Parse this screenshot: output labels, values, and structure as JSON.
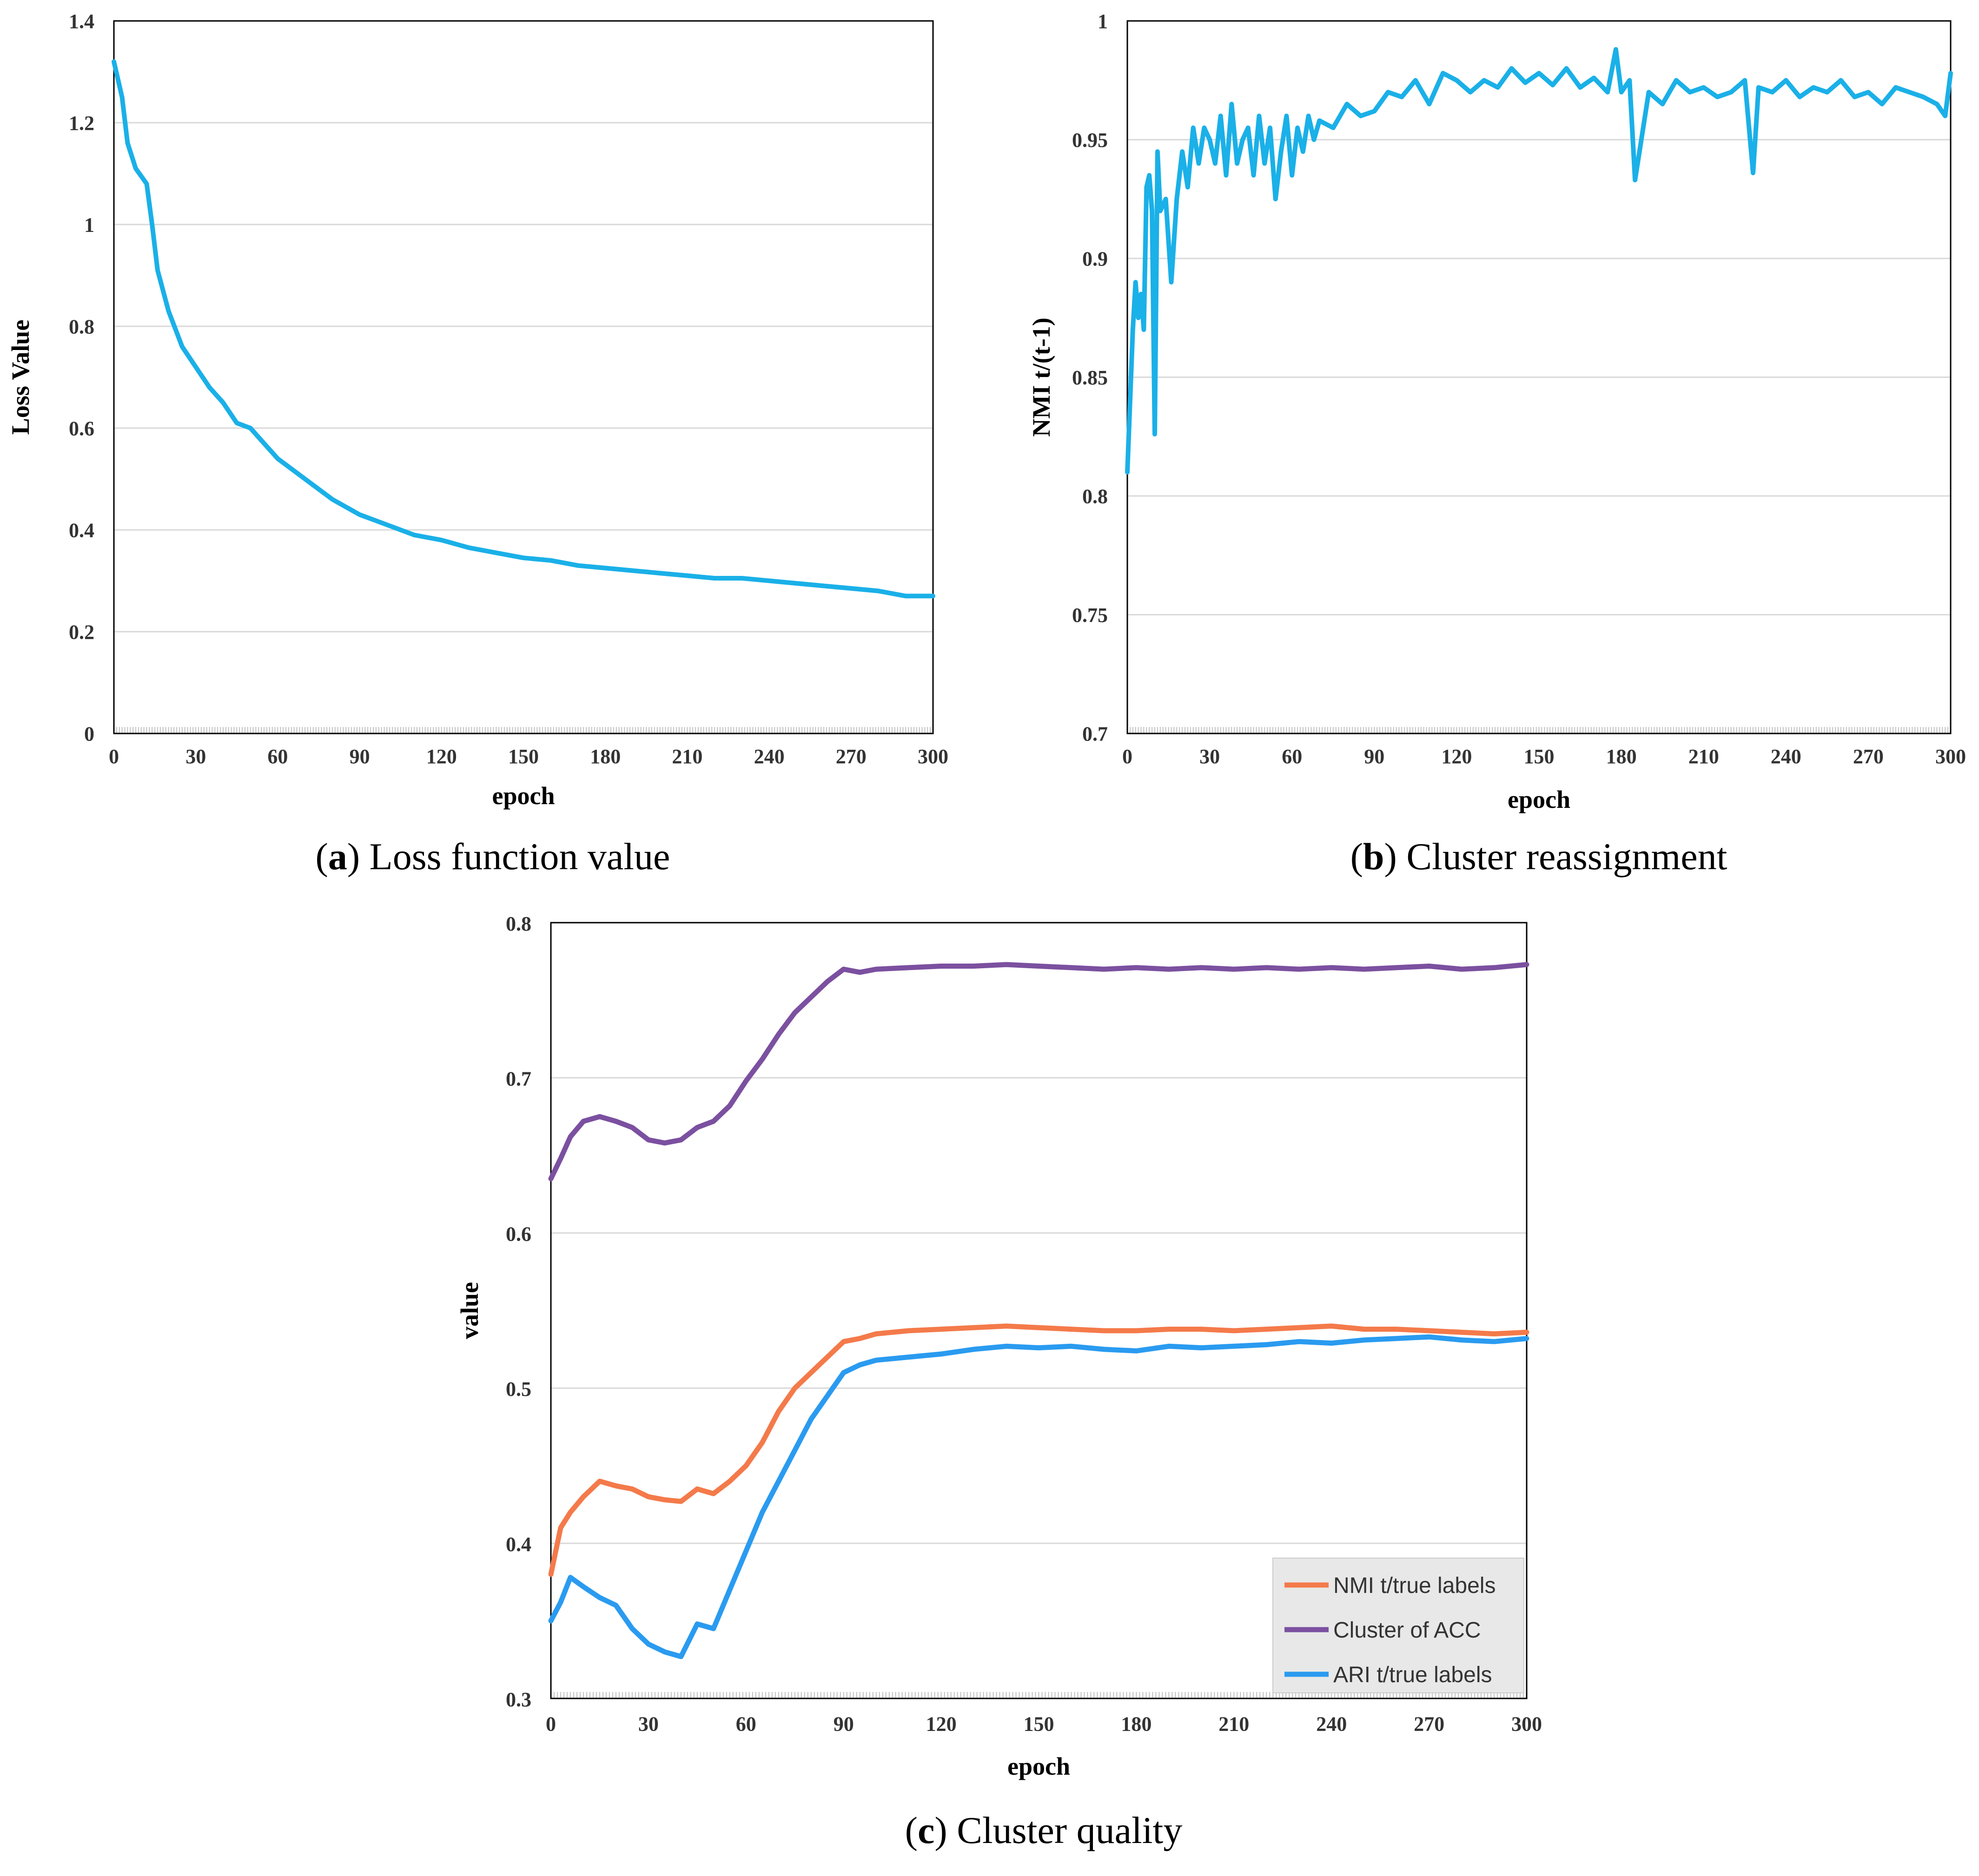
{
  "colors": {
    "loss": "#1ab0e8",
    "reassign": "#1ab0e8",
    "nmi": "#f47a4a",
    "acc": "#7b50a0",
    "ari": "#2a9bf0",
    "grid": "#d9d9d9",
    "frame": "#000000",
    "legend_bg": "#e8e8e8"
  },
  "chart_data": [
    {
      "id": "a",
      "type": "line",
      "title": "Loss function value",
      "caption_letter": "a",
      "caption_text": "Loss function value",
      "xlabel": "epoch",
      "ylabel": "Loss Value",
      "xlim": [
        0,
        300
      ],
      "ylim": [
        0,
        1.4
      ],
      "xticks": [
        0,
        30,
        60,
        90,
        120,
        150,
        180,
        210,
        240,
        270,
        300
      ],
      "xtick_labels": [
        "0",
        "30",
        "60",
        "90",
        "120",
        "150",
        "180",
        "210",
        "240",
        "270",
        "300"
      ],
      "yticks": [
        0,
        0.2,
        0.4,
        0.6,
        0.8,
        1.0,
        1.2,
        1.4
      ],
      "ytick_labels": [
        "0",
        "0.2",
        "0.4",
        "0.6",
        "0.8",
        "1",
        "1.2",
        "1.4"
      ],
      "grid": true,
      "series": [
        {
          "name": "Loss",
          "x": [
            0,
            3,
            5,
            8,
            12,
            14,
            16,
            20,
            25,
            30,
            35,
            40,
            45,
            50,
            55,
            60,
            70,
            80,
            90,
            100,
            110,
            120,
            130,
            140,
            150,
            160,
            170,
            180,
            190,
            200,
            210,
            220,
            230,
            240,
            250,
            260,
            270,
            280,
            290,
            300
          ],
          "y": [
            1.32,
            1.25,
            1.16,
            1.11,
            1.08,
            1.0,
            0.91,
            0.83,
            0.76,
            0.72,
            0.68,
            0.65,
            0.61,
            0.6,
            0.57,
            0.54,
            0.5,
            0.46,
            0.43,
            0.41,
            0.39,
            0.38,
            0.365,
            0.355,
            0.345,
            0.34,
            0.33,
            0.325,
            0.32,
            0.315,
            0.31,
            0.305,
            0.305,
            0.3,
            0.295,
            0.29,
            0.285,
            0.28,
            0.27,
            0.27
          ]
        }
      ]
    },
    {
      "id": "b",
      "type": "line",
      "title": "Cluster reassignment",
      "caption_letter": "b",
      "caption_text": "Cluster reassignment",
      "xlabel": "epoch",
      "ylabel": "NMI t/(t-1)",
      "xlim": [
        0,
        300
      ],
      "ylim": [
        0.7,
        1.0
      ],
      "xticks": [
        0,
        30,
        60,
        90,
        120,
        150,
        180,
        210,
        240,
        270,
        300
      ],
      "xtick_labels": [
        "0",
        "30",
        "60",
        "90",
        "120",
        "150",
        "180",
        "210",
        "240",
        "270",
        "300"
      ],
      "yticks": [
        0.7,
        0.75,
        0.8,
        0.85,
        0.9,
        0.95,
        1.0
      ],
      "ytick_labels": [
        "0.7",
        "0.75",
        "0.8",
        "0.85",
        "0.9",
        "0.95",
        "1"
      ],
      "grid": true,
      "series": [
        {
          "name": "NMI t/(t-1)",
          "x": [
            0,
            2,
            3,
            4,
            5,
            6,
            7,
            8,
            9,
            10,
            11,
            12,
            14,
            16,
            18,
            20,
            22,
            24,
            26,
            28,
            30,
            32,
            34,
            36,
            38,
            40,
            42,
            44,
            46,
            48,
            50,
            52,
            54,
            56,
            58,
            60,
            62,
            64,
            66,
            68,
            70,
            75,
            80,
            85,
            90,
            95,
            100,
            105,
            110,
            115,
            120,
            125,
            130,
            135,
            140,
            145,
            150,
            155,
            160,
            165,
            170,
            175,
            178,
            180,
            183,
            185,
            190,
            195,
            200,
            205,
            210,
            215,
            220,
            225,
            228,
            230,
            235,
            240,
            245,
            250,
            255,
            260,
            265,
            270,
            275,
            280,
            285,
            290,
            295,
            298,
            300
          ],
          "y": [
            0.81,
            0.87,
            0.89,
            0.875,
            0.885,
            0.87,
            0.93,
            0.935,
            0.92,
            0.826,
            0.945,
            0.92,
            0.925,
            0.89,
            0.925,
            0.945,
            0.93,
            0.955,
            0.94,
            0.955,
            0.95,
            0.94,
            0.96,
            0.935,
            0.965,
            0.94,
            0.95,
            0.955,
            0.935,
            0.96,
            0.94,
            0.955,
            0.925,
            0.945,
            0.96,
            0.935,
            0.955,
            0.945,
            0.96,
            0.95,
            0.958,
            0.955,
            0.965,
            0.96,
            0.962,
            0.97,
            0.968,
            0.975,
            0.965,
            0.978,
            0.975,
            0.97,
            0.975,
            0.972,
            0.98,
            0.974,
            0.978,
            0.973,
            0.98,
            0.972,
            0.976,
            0.97,
            0.988,
            0.97,
            0.975,
            0.933,
            0.97,
            0.965,
            0.975,
            0.97,
            0.972,
            0.968,
            0.97,
            0.975,
            0.936,
            0.972,
            0.97,
            0.975,
            0.968,
            0.972,
            0.97,
            0.975,
            0.968,
            0.97,
            0.965,
            0.972,
            0.97,
            0.968,
            0.965,
            0.96,
            0.978
          ]
        }
      ]
    },
    {
      "id": "c",
      "type": "line",
      "title": "Cluster quality",
      "caption_letter": "c",
      "caption_text": "Cluster quality",
      "xlabel": "epoch",
      "ylabel": "value",
      "xlim": [
        0,
        300
      ],
      "ylim": [
        0.3,
        0.8
      ],
      "xticks": [
        0,
        30,
        60,
        90,
        120,
        150,
        180,
        210,
        240,
        270,
        300
      ],
      "xtick_labels": [
        "0",
        "30",
        "60",
        "90",
        "120",
        "150",
        "180",
        "210",
        "240",
        "270",
        "300"
      ],
      "yticks": [
        0.3,
        0.4,
        0.5,
        0.6,
        0.7,
        0.8
      ],
      "ytick_labels": [
        "0.3",
        "0.4",
        "0.5",
        "0.6",
        "0.7",
        "0.8"
      ],
      "grid": true,
      "legend_position": "bottom-right",
      "series": [
        {
          "name": "NMI t/true labels",
          "color_key": "nmi",
          "x": [
            0,
            3,
            6,
            10,
            15,
            20,
            25,
            30,
            35,
            40,
            45,
            50,
            55,
            60,
            65,
            70,
            75,
            80,
            85,
            90,
            95,
            100,
            110,
            120,
            130,
            140,
            150,
            160,
            170,
            180,
            190,
            200,
            210,
            220,
            230,
            240,
            250,
            260,
            270,
            280,
            290,
            300
          ],
          "y": [
            0.38,
            0.41,
            0.42,
            0.43,
            0.44,
            0.437,
            0.435,
            0.43,
            0.428,
            0.427,
            0.435,
            0.432,
            0.44,
            0.45,
            0.465,
            0.485,
            0.5,
            0.51,
            0.52,
            0.53,
            0.532,
            0.535,
            0.537,
            0.538,
            0.539,
            0.54,
            0.539,
            0.538,
            0.537,
            0.537,
            0.538,
            0.538,
            0.537,
            0.538,
            0.539,
            0.54,
            0.538,
            0.538,
            0.537,
            0.536,
            0.535,
            0.536
          ]
        },
        {
          "name": "Cluster of ACC",
          "color_key": "acc",
          "x": [
            0,
            3,
            6,
            10,
            15,
            20,
            25,
            30,
            35,
            40,
            45,
            50,
            55,
            60,
            65,
            70,
            75,
            80,
            85,
            90,
            95,
            100,
            110,
            120,
            130,
            140,
            150,
            160,
            170,
            180,
            190,
            200,
            210,
            220,
            230,
            240,
            250,
            260,
            270,
            280,
            290,
            300
          ],
          "y": [
            0.635,
            0.648,
            0.662,
            0.672,
            0.675,
            0.672,
            0.668,
            0.66,
            0.658,
            0.66,
            0.668,
            0.672,
            0.682,
            0.698,
            0.712,
            0.728,
            0.742,
            0.752,
            0.762,
            0.77,
            0.768,
            0.77,
            0.771,
            0.772,
            0.772,
            0.773,
            0.772,
            0.771,
            0.77,
            0.771,
            0.77,
            0.771,
            0.77,
            0.771,
            0.77,
            0.771,
            0.77,
            0.771,
            0.772,
            0.77,
            0.771,
            0.773
          ]
        },
        {
          "name": "ARI t/true labels",
          "color_key": "ari",
          "x": [
            0,
            3,
            6,
            10,
            15,
            20,
            25,
            30,
            35,
            40,
            45,
            50,
            55,
            60,
            65,
            70,
            75,
            80,
            85,
            90,
            95,
            100,
            110,
            120,
            130,
            140,
            150,
            160,
            170,
            180,
            190,
            200,
            210,
            220,
            230,
            240,
            250,
            260,
            270,
            280,
            290,
            300
          ],
          "y": [
            0.35,
            0.362,
            0.378,
            0.372,
            0.365,
            0.36,
            0.345,
            0.335,
            0.33,
            0.327,
            0.348,
            0.345,
            0.37,
            0.395,
            0.42,
            0.44,
            0.46,
            0.48,
            0.495,
            0.51,
            0.515,
            0.518,
            0.52,
            0.522,
            0.525,
            0.527,
            0.526,
            0.527,
            0.525,
            0.524,
            0.527,
            0.526,
            0.527,
            0.528,
            0.53,
            0.529,
            0.531,
            0.532,
            0.533,
            0.531,
            0.53,
            0.532
          ]
        }
      ]
    }
  ]
}
